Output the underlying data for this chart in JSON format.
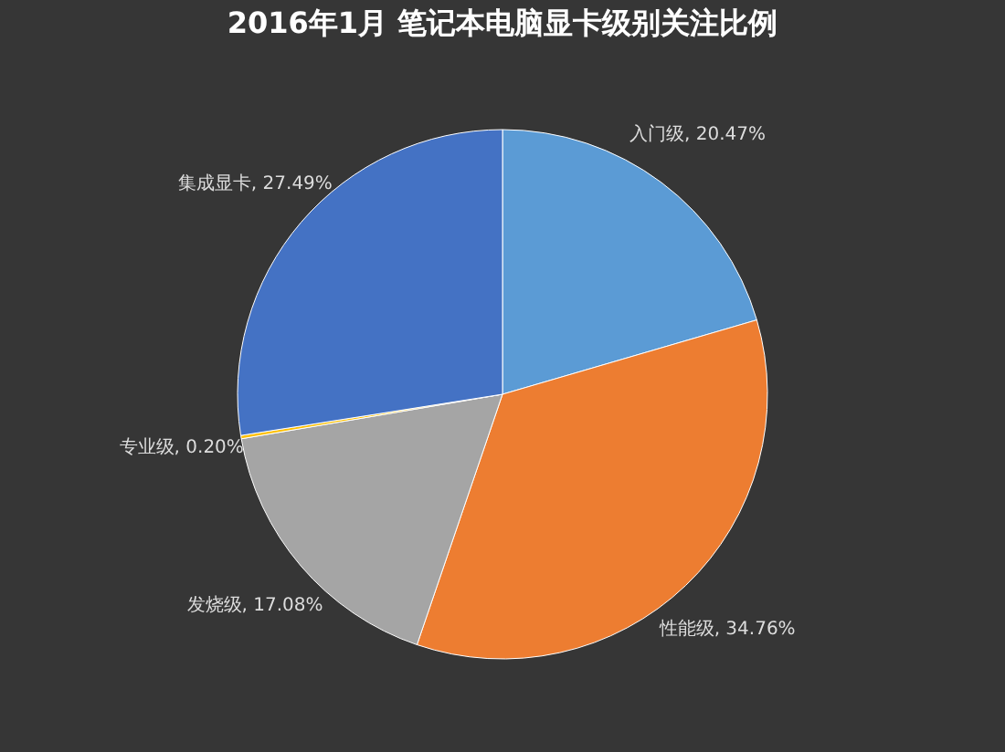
{
  "chart_data": {
    "type": "pie",
    "title": "2016年1月 笔记本电脑显卡级别关注比例",
    "categories": [
      "入门级",
      "性能级",
      "发烧级",
      "专业级",
      "集成显卡"
    ],
    "values": [
      20.47,
      34.76,
      17.08,
      0.2,
      27.49
    ],
    "value_labels": [
      "20.47%",
      "34.76%",
      "17.08%",
      "0.20%",
      "27.49%"
    ],
    "colors": [
      "#5b9bd5",
      "#ed7d31",
      "#a5a5a5",
      "#ffc000",
      "#4472c4"
    ],
    "legend": false
  }
}
